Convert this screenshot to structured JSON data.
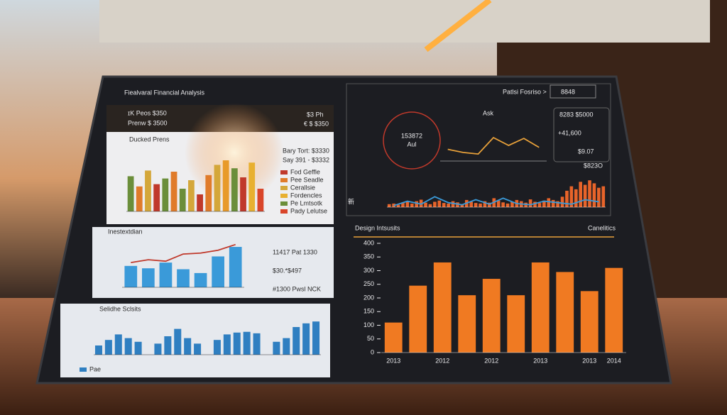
{
  "header": {
    "title": "Fiealvaral Financial Analysis",
    "nav": "Patlsi Fosriso  >",
    "badge": "8848"
  },
  "kpis_left": [
    "ɪK Peos  $350",
    "Prenw  $ 3500",
    "$3 Ph",
    "€ $ $350"
  ],
  "kpis_right": {
    "top": "8283 $5000",
    "main": "+41,600",
    "sub": "$9.07",
    "tag": "$823O"
  },
  "glyph": "新",
  "chart_data": [
    {
      "type": "bar",
      "title": "Ducked Prens",
      "ylim": [
        0,
        100
      ],
      "values": [
        62,
        44,
        72,
        48,
        58,
        70,
        40,
        55,
        30,
        64,
        82,
        90,
        76,
        60,
        86,
        40
      ],
      "colors": [
        "#6b8e3a",
        "#e07b2a",
        "#d4a73a",
        "#c0392b",
        "#6b8e3a",
        "#e07b2a",
        "#6b8e3a",
        "#d4a73a",
        "#c0392b",
        "#e07b2a",
        "#d4a73a",
        "#e89a2a",
        "#6b8e3a",
        "#c0392b",
        "#e8b030",
        "#d9452a"
      ],
      "annotations": [
        "Bary Tort: $3330",
        "Say 391 - $3332"
      ],
      "legend": [
        {
          "label": "Fod Geffle",
          "color": "#c0392b"
        },
        {
          "label": "Pee Seadle",
          "color": "#e07b2a"
        },
        {
          "label": "Cerallsie",
          "color": "#d4a73a"
        },
        {
          "label": "Fordencles",
          "color": "#e8b030"
        },
        {
          "label": "Pe Lmtsotk",
          "color": "#6b8e3a"
        },
        {
          "label": "Pady Lelutse",
          "color": "#d9452a"
        }
      ]
    },
    {
      "type": "bar",
      "title": "Inestextdian",
      "ylim": [
        0,
        100
      ],
      "values": [
        45,
        40,
        52,
        38,
        30,
        65,
        85
      ],
      "color": "#3a9ad9",
      "line": {
        "values": [
          52,
          58,
          55,
          70,
          72,
          78,
          90
        ],
        "color": "#c0392b"
      },
      "annotations": [
        "11417 Pat 1330",
        "$30.*$497",
        "#1300 Pwsl NCK"
      ]
    },
    {
      "type": "bar",
      "title": "Selidhe Sclsits",
      "ylim": [
        0,
        100
      ],
      "values": [
        25,
        40,
        55,
        45,
        35,
        null,
        30,
        50,
        70,
        45,
        30,
        null,
        40,
        55,
        60,
        62,
        58,
        null,
        35,
        45,
        75,
        85,
        90
      ],
      "color": "#2f7fc1",
      "legend": [
        {
          "label": "Pae",
          "color": "#2f7fc1"
        }
      ]
    },
    {
      "type": "line",
      "title": "Ask",
      "ylim": [
        0,
        100
      ],
      "values": [
        30,
        22,
        18,
        60,
        40,
        58,
        35
      ],
      "color": "#e8a13a",
      "ring_label": [
        "153872",
        "Aul"
      ]
    },
    {
      "type": "bar",
      "ylim": [
        0,
        100
      ],
      "values": [
        10,
        12,
        8,
        15,
        18,
        12,
        20,
        25,
        15,
        10,
        18,
        22,
        14,
        12,
        20,
        16,
        10,
        24,
        18,
        14,
        12,
        20,
        15,
        30,
        22,
        16,
        12,
        18,
        24,
        20,
        15,
        26,
        18,
        14,
        22,
        30,
        24,
        20,
        35,
        55,
        70,
        60,
        85,
        75,
        90,
        80,
        65,
        70
      ],
      "color": "#e8642a",
      "line": {
        "values": [
          5,
          20,
          10,
          35,
          15,
          8,
          25,
          10,
          30,
          12,
          8,
          20,
          15,
          10,
          25,
          18
        ],
        "color": "#3a9ad9"
      }
    },
    {
      "type": "bar",
      "title": "Design Intsusits",
      "subtitle": "Canelitics",
      "ylim": [
        0,
        400
      ],
      "yticks": [
        0,
        50,
        100,
        150,
        200,
        250,
        300,
        350,
        400
      ],
      "values": [
        110,
        245,
        330,
        210,
        270,
        210,
        330,
        295,
        225,
        310
      ],
      "categories": [
        "2013",
        null,
        "2012",
        null,
        "2012",
        null,
        "2013",
        null,
        "2013",
        "2014"
      ],
      "color": "#f07a22"
    }
  ]
}
